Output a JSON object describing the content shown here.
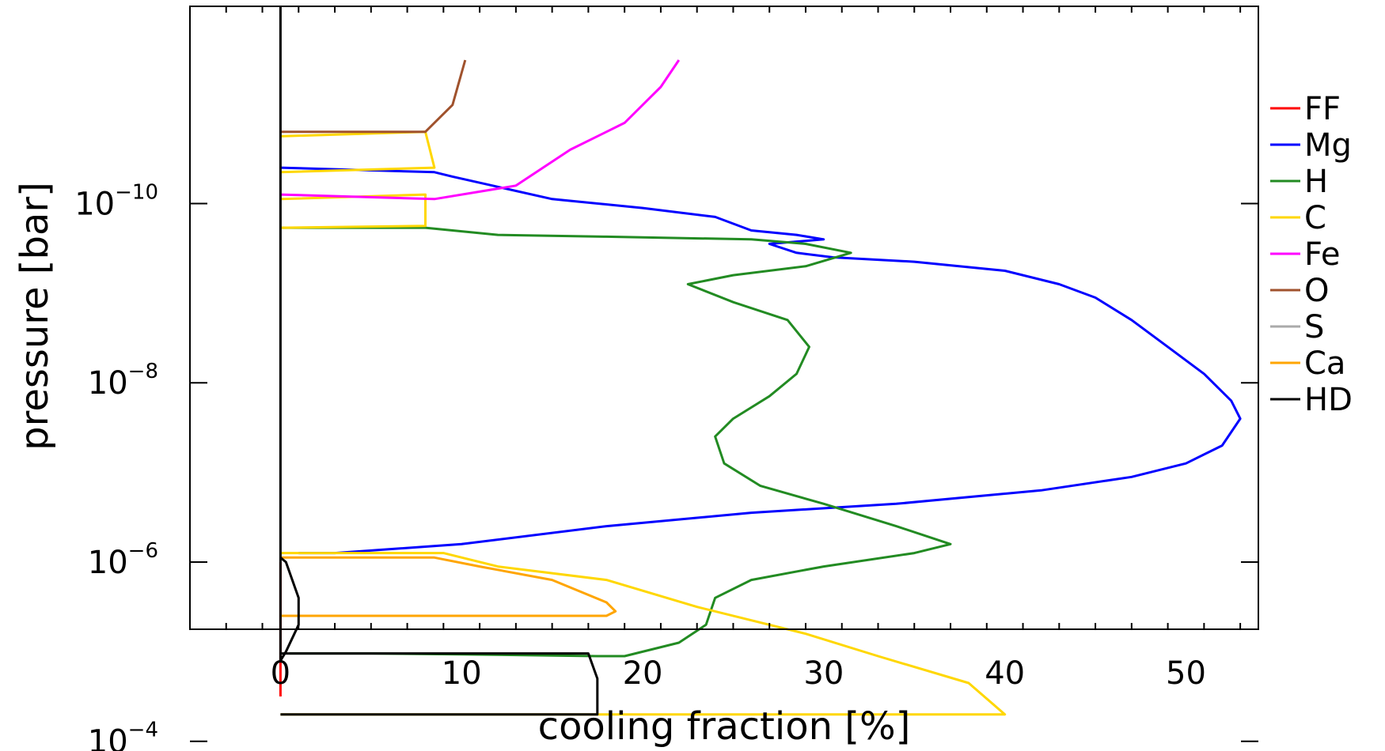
{
  "chart_data": {
    "type": "line",
    "title": "",
    "xlabel": "cooling fraction [%]",
    "ylabel": "pressure [bar]",
    "xlim": [
      -5,
      54
    ],
    "ylim_log10": [
      -5.25,
      -12.2
    ],
    "y_scale": "log",
    "x_ticks": [
      {
        "value": 0,
        "label": "0"
      },
      {
        "value": 10,
        "label": "10"
      },
      {
        "value": 20,
        "label": "20"
      },
      {
        "value": 30,
        "label": "30"
      },
      {
        "value": 40,
        "label": "40"
      },
      {
        "value": 50,
        "label": "50"
      }
    ],
    "y_ticks": [
      {
        "log10": -10,
        "base": "10",
        "exp": "−10"
      },
      {
        "log10": -8,
        "base": "10",
        "exp": "−8"
      },
      {
        "log10": -6,
        "base": "10",
        "exp": "−6"
      },
      {
        "log10": -4,
        "base": "10",
        "exp": "−4"
      }
    ],
    "legend_position": "right",
    "series": [
      {
        "name": "FF",
        "color": "#ff0000",
        "width": 3,
        "points": [
          [
            0,
            -6.0
          ],
          [
            0,
            -5.6
          ],
          [
            0,
            -5.0
          ],
          [
            0,
            -4.5
          ]
        ]
      },
      {
        "name": "Mg",
        "color": "#0000ff",
        "width": 3,
        "points": [
          [
            0,
            -10.4
          ],
          [
            8.5,
            -10.35
          ],
          [
            9.5,
            -10.3
          ],
          [
            15,
            -10.05
          ],
          [
            20,
            -9.95
          ],
          [
            24,
            -9.85
          ],
          [
            26,
            -9.7
          ],
          [
            28.5,
            -9.65
          ],
          [
            30,
            -9.6
          ],
          [
            27,
            -9.55
          ],
          [
            28.5,
            -9.45
          ],
          [
            30.5,
            -9.4
          ],
          [
            35,
            -9.35
          ],
          [
            40,
            -9.25
          ],
          [
            43,
            -9.1
          ],
          [
            45,
            -8.95
          ],
          [
            47,
            -8.7
          ],
          [
            49,
            -8.4
          ],
          [
            51,
            -8.1
          ],
          [
            52.5,
            -7.8
          ],
          [
            53,
            -7.6
          ],
          [
            52,
            -7.3
          ],
          [
            50,
            -7.1
          ],
          [
            47,
            -6.95
          ],
          [
            42,
            -6.8
          ],
          [
            34,
            -6.65
          ],
          [
            26,
            -6.55
          ],
          [
            18,
            -6.4
          ],
          [
            10,
            -6.2
          ],
          [
            3,
            -6.1
          ],
          [
            1,
            -6.1
          ]
        ]
      },
      {
        "name": "H",
        "color": "#228b22",
        "width": 3,
        "points": [
          [
            0,
            -9.73
          ],
          [
            8,
            -9.73
          ],
          [
            12,
            -9.65
          ],
          [
            18,
            -9.63
          ],
          [
            26,
            -9.6
          ],
          [
            29,
            -9.55
          ],
          [
            31.5,
            -9.45
          ],
          [
            29,
            -9.3
          ],
          [
            25,
            -9.2
          ],
          [
            22.5,
            -9.1
          ],
          [
            25,
            -8.9
          ],
          [
            28,
            -8.7
          ],
          [
            29.2,
            -8.4
          ],
          [
            28.5,
            -8.1
          ],
          [
            27,
            -7.85
          ],
          [
            25,
            -7.6
          ],
          [
            24,
            -7.4
          ],
          [
            24.5,
            -7.1
          ],
          [
            26.5,
            -6.85
          ],
          [
            30,
            -6.65
          ],
          [
            34,
            -6.4
          ],
          [
            37,
            -6.2
          ],
          [
            35,
            -6.1
          ],
          [
            30,
            -5.95
          ],
          [
            26,
            -5.8
          ],
          [
            24,
            -5.6
          ],
          [
            23.5,
            -5.3
          ],
          [
            22,
            -5.1
          ],
          [
            19,
            -4.95
          ],
          [
            17.5,
            -4.95
          ],
          [
            10,
            -4.97
          ],
          [
            5,
            -4.98
          ],
          [
            0.5,
            -4.98
          ]
        ]
      },
      {
        "name": "C",
        "color": "#ffd700",
        "width": 3,
        "points": [
          [
            0,
            -10.05
          ],
          [
            8,
            -10.1
          ],
          [
            8,
            -9.75
          ],
          [
            0,
            -9.73
          ]
        ]
      },
      {
        "name": "C",
        "color": "#ffd700",
        "width": 3,
        "points": [
          [
            0,
            -10.75
          ],
          [
            8,
            -10.8
          ],
          [
            8.5,
            -10.4
          ],
          [
            0,
            -10.35
          ]
        ]
      },
      {
        "name": "C",
        "color": "#ffd700",
        "width": 3,
        "points": [
          [
            0,
            -6.1
          ],
          [
            9,
            -6.1
          ],
          [
            12,
            -5.95
          ],
          [
            18,
            -5.8
          ],
          [
            23,
            -5.5
          ],
          [
            29,
            -5.2
          ],
          [
            33,
            -4.95
          ],
          [
            38,
            -4.65
          ],
          [
            40,
            -4.3
          ],
          [
            5,
            -4.3
          ],
          [
            0,
            -4.3
          ]
        ]
      },
      {
        "name": "Fe",
        "color": "#ff00ff",
        "width": 3,
        "points": [
          [
            0,
            -10.1
          ],
          [
            8.5,
            -10.05
          ],
          [
            13,
            -10.2
          ],
          [
            16,
            -10.6
          ],
          [
            19,
            -10.9
          ],
          [
            21,
            -11.3
          ],
          [
            22,
            -11.6
          ]
        ]
      },
      {
        "name": "O",
        "color": "#a0522d",
        "width": 3,
        "points": [
          [
            0,
            -10.8
          ],
          [
            8,
            -10.8
          ],
          [
            9.5,
            -11.1
          ],
          [
            10.2,
            -11.6
          ]
        ]
      },
      {
        "name": "S",
        "color": "#aaaaaa",
        "width": 2,
        "points": []
      },
      {
        "name": "Ca",
        "color": "#ffa500",
        "width": 3,
        "points": [
          [
            0,
            -6.05
          ],
          [
            8.5,
            -6.05
          ],
          [
            11,
            -5.95
          ],
          [
            15,
            -5.8
          ],
          [
            18,
            -5.55
          ],
          [
            18.5,
            -5.45
          ],
          [
            18,
            -5.4
          ],
          [
            10,
            -5.4
          ],
          [
            0,
            -5.4
          ]
        ]
      },
      {
        "name": "HD",
        "color": "#000000",
        "width": 3,
        "points": [
          [
            0,
            -12.2
          ],
          [
            0,
            -5.2
          ],
          [
            0,
            -4.9
          ],
          [
            0.3,
            -5.0
          ],
          [
            1,
            -5.3
          ],
          [
            1,
            -5.6
          ],
          [
            0.3,
            -6.0
          ],
          [
            0,
            -6.05
          ]
        ]
      },
      {
        "name": "HD",
        "color": "#000000",
        "width": 3,
        "points": [
          [
            0,
            -4.98
          ],
          [
            17,
            -4.98
          ],
          [
            17.5,
            -4.7
          ],
          [
            17.5,
            -4.3
          ],
          [
            10,
            -4.3
          ],
          [
            0,
            -4.3
          ]
        ]
      }
    ],
    "legend": [
      {
        "label": "FF",
        "color": "#ff0000"
      },
      {
        "label": "Mg",
        "color": "#0000ff"
      },
      {
        "label": "H",
        "color": "#228b22"
      },
      {
        "label": "C",
        "color": "#ffd700"
      },
      {
        "label": "Fe",
        "color": "#ff00ff"
      },
      {
        "label": "O",
        "color": "#a0522d"
      },
      {
        "label": "S",
        "color": "#aaaaaa"
      },
      {
        "label": "Ca",
        "color": "#ffa500"
      },
      {
        "label": "HD",
        "color": "#000000"
      }
    ]
  }
}
